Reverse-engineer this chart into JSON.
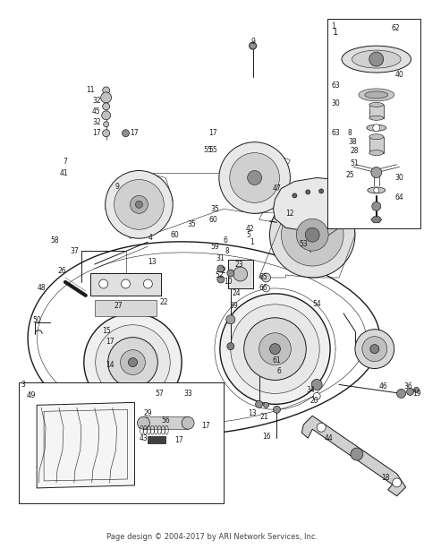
{
  "footer": "Page design © 2004-2017 by ARI Network Services, Inc.",
  "bg_color": "#ffffff",
  "line_color": "#1a1a1a",
  "fig_width": 4.74,
  "fig_height": 6.13,
  "dpi": 100
}
